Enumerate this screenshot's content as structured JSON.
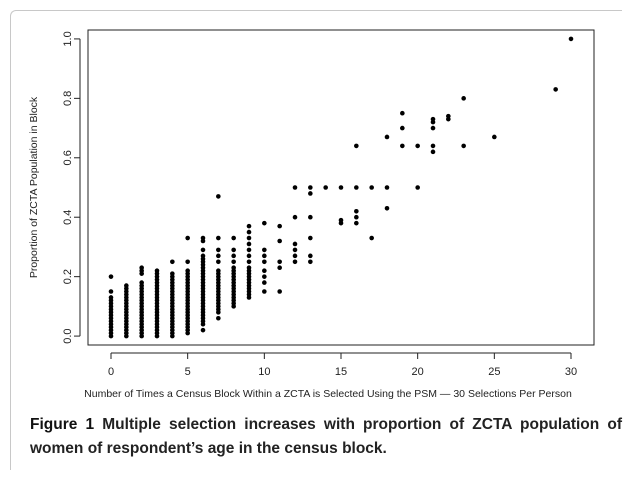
{
  "caption": {
    "label": "Figure 1",
    "text": "Multiple selection increases with proportion of ZCTA population of women of respondent’s age in the census block."
  },
  "chart_data": {
    "type": "scatter",
    "title": "",
    "xlabel": "Number of Times a Census Block Within a ZCTA is Selected Using the PSM — 30 Selections Per Person",
    "ylabel": "Proportion of ZCTA Population in Block",
    "xlim": [
      -1.5,
      31.5
    ],
    "ylim": [
      -0.03,
      1.03
    ],
    "x_ticks": [
      0,
      5,
      10,
      15,
      20,
      25,
      30
    ],
    "x_tick_labels": [
      "0",
      "5",
      "10",
      "15",
      "20",
      "25",
      "30"
    ],
    "y_ticks": [
      0.0,
      0.2,
      0.4,
      0.6,
      0.8,
      1.0
    ],
    "y_tick_labels": [
      "0.0",
      "0.2",
      "0.4",
      "0.6",
      "0.8",
      "1.0"
    ],
    "grid": false,
    "marker_color": "#000000",
    "series": [
      {
        "points": [
          [
            0,
            0.0
          ],
          [
            0,
            0.01
          ],
          [
            0,
            0.02
          ],
          [
            0,
            0.03
          ],
          [
            0,
            0.04
          ],
          [
            0,
            0.05
          ],
          [
            0,
            0.06
          ],
          [
            0,
            0.07
          ],
          [
            0,
            0.08
          ],
          [
            0,
            0.09
          ],
          [
            0,
            0.1
          ],
          [
            0,
            0.11
          ],
          [
            0,
            0.12
          ],
          [
            0,
            0.13
          ],
          [
            0,
            0.15
          ],
          [
            0,
            0.2
          ],
          [
            1,
            0.0
          ],
          [
            1,
            0.01
          ],
          [
            1,
            0.02
          ],
          [
            1,
            0.03
          ],
          [
            1,
            0.04
          ],
          [
            1,
            0.05
          ],
          [
            1,
            0.06
          ],
          [
            1,
            0.07
          ],
          [
            1,
            0.08
          ],
          [
            1,
            0.09
          ],
          [
            1,
            0.1
          ],
          [
            1,
            0.11
          ],
          [
            1,
            0.12
          ],
          [
            1,
            0.13
          ],
          [
            1,
            0.14
          ],
          [
            1,
            0.15
          ],
          [
            1,
            0.16
          ],
          [
            1,
            0.17
          ],
          [
            2,
            0.0
          ],
          [
            2,
            0.01
          ],
          [
            2,
            0.02
          ],
          [
            2,
            0.03
          ],
          [
            2,
            0.04
          ],
          [
            2,
            0.05
          ],
          [
            2,
            0.06
          ],
          [
            2,
            0.07
          ],
          [
            2,
            0.08
          ],
          [
            2,
            0.09
          ],
          [
            2,
            0.1
          ],
          [
            2,
            0.11
          ],
          [
            2,
            0.12
          ],
          [
            2,
            0.13
          ],
          [
            2,
            0.14
          ],
          [
            2,
            0.15
          ],
          [
            2,
            0.16
          ],
          [
            2,
            0.17
          ],
          [
            2,
            0.18
          ],
          [
            2,
            0.21
          ],
          [
            2,
            0.22
          ],
          [
            2,
            0.23
          ],
          [
            3,
            0.0
          ],
          [
            3,
            0.01
          ],
          [
            3,
            0.02
          ],
          [
            3,
            0.03
          ],
          [
            3,
            0.04
          ],
          [
            3,
            0.05
          ],
          [
            3,
            0.06
          ],
          [
            3,
            0.07
          ],
          [
            3,
            0.08
          ],
          [
            3,
            0.09
          ],
          [
            3,
            0.1
          ],
          [
            3,
            0.11
          ],
          [
            3,
            0.12
          ],
          [
            3,
            0.13
          ],
          [
            3,
            0.14
          ],
          [
            3,
            0.15
          ],
          [
            3,
            0.16
          ],
          [
            3,
            0.17
          ],
          [
            3,
            0.18
          ],
          [
            3,
            0.19
          ],
          [
            3,
            0.2
          ],
          [
            3,
            0.21
          ],
          [
            3,
            0.22
          ],
          [
            4,
            0.0
          ],
          [
            4,
            0.01
          ],
          [
            4,
            0.02
          ],
          [
            4,
            0.03
          ],
          [
            4,
            0.04
          ],
          [
            4,
            0.05
          ],
          [
            4,
            0.06
          ],
          [
            4,
            0.07
          ],
          [
            4,
            0.08
          ],
          [
            4,
            0.09
          ],
          [
            4,
            0.1
          ],
          [
            4,
            0.11
          ],
          [
            4,
            0.12
          ],
          [
            4,
            0.13
          ],
          [
            4,
            0.14
          ],
          [
            4,
            0.15
          ],
          [
            4,
            0.16
          ],
          [
            4,
            0.17
          ],
          [
            4,
            0.18
          ],
          [
            4,
            0.19
          ],
          [
            4,
            0.2
          ],
          [
            4,
            0.21
          ],
          [
            4,
            0.25
          ],
          [
            5,
            0.01
          ],
          [
            5,
            0.02
          ],
          [
            5,
            0.03
          ],
          [
            5,
            0.04
          ],
          [
            5,
            0.05
          ],
          [
            5,
            0.06
          ],
          [
            5,
            0.07
          ],
          [
            5,
            0.08
          ],
          [
            5,
            0.09
          ],
          [
            5,
            0.1
          ],
          [
            5,
            0.11
          ],
          [
            5,
            0.12
          ],
          [
            5,
            0.13
          ],
          [
            5,
            0.14
          ],
          [
            5,
            0.15
          ],
          [
            5,
            0.16
          ],
          [
            5,
            0.17
          ],
          [
            5,
            0.18
          ],
          [
            5,
            0.19
          ],
          [
            5,
            0.2
          ],
          [
            5,
            0.21
          ],
          [
            5,
            0.22
          ],
          [
            5,
            0.25
          ],
          [
            5,
            0.33
          ],
          [
            6,
            0.02
          ],
          [
            6,
            0.04
          ],
          [
            6,
            0.05
          ],
          [
            6,
            0.06
          ],
          [
            6,
            0.07
          ],
          [
            6,
            0.08
          ],
          [
            6,
            0.09
          ],
          [
            6,
            0.1
          ],
          [
            6,
            0.11
          ],
          [
            6,
            0.12
          ],
          [
            6,
            0.13
          ],
          [
            6,
            0.14
          ],
          [
            6,
            0.15
          ],
          [
            6,
            0.16
          ],
          [
            6,
            0.17
          ],
          [
            6,
            0.18
          ],
          [
            6,
            0.19
          ],
          [
            6,
            0.2
          ],
          [
            6,
            0.21
          ],
          [
            6,
            0.22
          ],
          [
            6,
            0.23
          ],
          [
            6,
            0.24
          ],
          [
            6,
            0.25
          ],
          [
            6,
            0.26
          ],
          [
            6,
            0.27
          ],
          [
            6,
            0.29
          ],
          [
            6,
            0.32
          ],
          [
            6,
            0.33
          ],
          [
            7,
            0.06
          ],
          [
            7,
            0.08
          ],
          [
            7,
            0.09
          ],
          [
            7,
            0.1
          ],
          [
            7,
            0.11
          ],
          [
            7,
            0.12
          ],
          [
            7,
            0.13
          ],
          [
            7,
            0.14
          ],
          [
            7,
            0.15
          ],
          [
            7,
            0.16
          ],
          [
            7,
            0.17
          ],
          [
            7,
            0.18
          ],
          [
            7,
            0.19
          ],
          [
            7,
            0.2
          ],
          [
            7,
            0.21
          ],
          [
            7,
            0.22
          ],
          [
            7,
            0.25
          ],
          [
            7,
            0.27
          ],
          [
            7,
            0.29
          ],
          [
            7,
            0.33
          ],
          [
            7,
            0.47
          ],
          [
            8,
            0.1
          ],
          [
            8,
            0.11
          ],
          [
            8,
            0.12
          ],
          [
            8,
            0.13
          ],
          [
            8,
            0.14
          ],
          [
            8,
            0.15
          ],
          [
            8,
            0.16
          ],
          [
            8,
            0.17
          ],
          [
            8,
            0.18
          ],
          [
            8,
            0.19
          ],
          [
            8,
            0.2
          ],
          [
            8,
            0.21
          ],
          [
            8,
            0.22
          ],
          [
            8,
            0.23
          ],
          [
            8,
            0.25
          ],
          [
            8,
            0.27
          ],
          [
            8,
            0.29
          ],
          [
            8,
            0.33
          ],
          [
            9,
            0.13
          ],
          [
            9,
            0.14
          ],
          [
            9,
            0.15
          ],
          [
            9,
            0.16
          ],
          [
            9,
            0.17
          ],
          [
            9,
            0.18
          ],
          [
            9,
            0.19
          ],
          [
            9,
            0.2
          ],
          [
            9,
            0.21
          ],
          [
            9,
            0.22
          ],
          [
            9,
            0.23
          ],
          [
            9,
            0.25
          ],
          [
            9,
            0.27
          ],
          [
            9,
            0.29
          ],
          [
            9,
            0.31
          ],
          [
            9,
            0.33
          ],
          [
            9,
            0.35
          ],
          [
            9,
            0.37
          ],
          [
            10,
            0.15
          ],
          [
            10,
            0.18
          ],
          [
            10,
            0.2
          ],
          [
            10,
            0.22
          ],
          [
            10,
            0.25
          ],
          [
            10,
            0.27
          ],
          [
            10,
            0.29
          ],
          [
            10,
            0.38
          ],
          [
            11,
            0.15
          ],
          [
            11,
            0.23
          ],
          [
            11,
            0.25
          ],
          [
            11,
            0.32
          ],
          [
            11,
            0.37
          ],
          [
            12,
            0.25
          ],
          [
            12,
            0.27
          ],
          [
            12,
            0.29
          ],
          [
            12,
            0.31
          ],
          [
            12,
            0.4
          ],
          [
            12,
            0.5
          ],
          [
            13,
            0.25
          ],
          [
            13,
            0.27
          ],
          [
            13,
            0.33
          ],
          [
            13,
            0.4
          ],
          [
            13,
            0.48
          ],
          [
            13,
            0.5
          ],
          [
            14,
            0.5
          ],
          [
            15,
            0.38
          ],
          [
            15,
            0.39
          ],
          [
            15,
            0.5
          ],
          [
            16,
            0.38
          ],
          [
            16,
            0.4
          ],
          [
            16,
            0.42
          ],
          [
            16,
            0.5
          ],
          [
            16,
            0.64
          ],
          [
            17,
            0.33
          ],
          [
            17,
            0.5
          ],
          [
            18,
            0.43
          ],
          [
            18,
            0.5
          ],
          [
            18,
            0.67
          ],
          [
            19,
            0.64
          ],
          [
            19,
            0.7
          ],
          [
            19,
            0.75
          ],
          [
            20,
            0.5
          ],
          [
            20,
            0.64
          ],
          [
            21,
            0.62
          ],
          [
            21,
            0.64
          ],
          [
            21,
            0.7
          ],
          [
            21,
            0.72
          ],
          [
            21,
            0.73
          ],
          [
            22,
            0.73
          ],
          [
            22,
            0.74
          ],
          [
            23,
            0.64
          ],
          [
            23,
            0.8
          ],
          [
            25,
            0.67
          ],
          [
            29,
            0.83
          ],
          [
            30,
            1.0
          ]
        ]
      }
    ]
  }
}
